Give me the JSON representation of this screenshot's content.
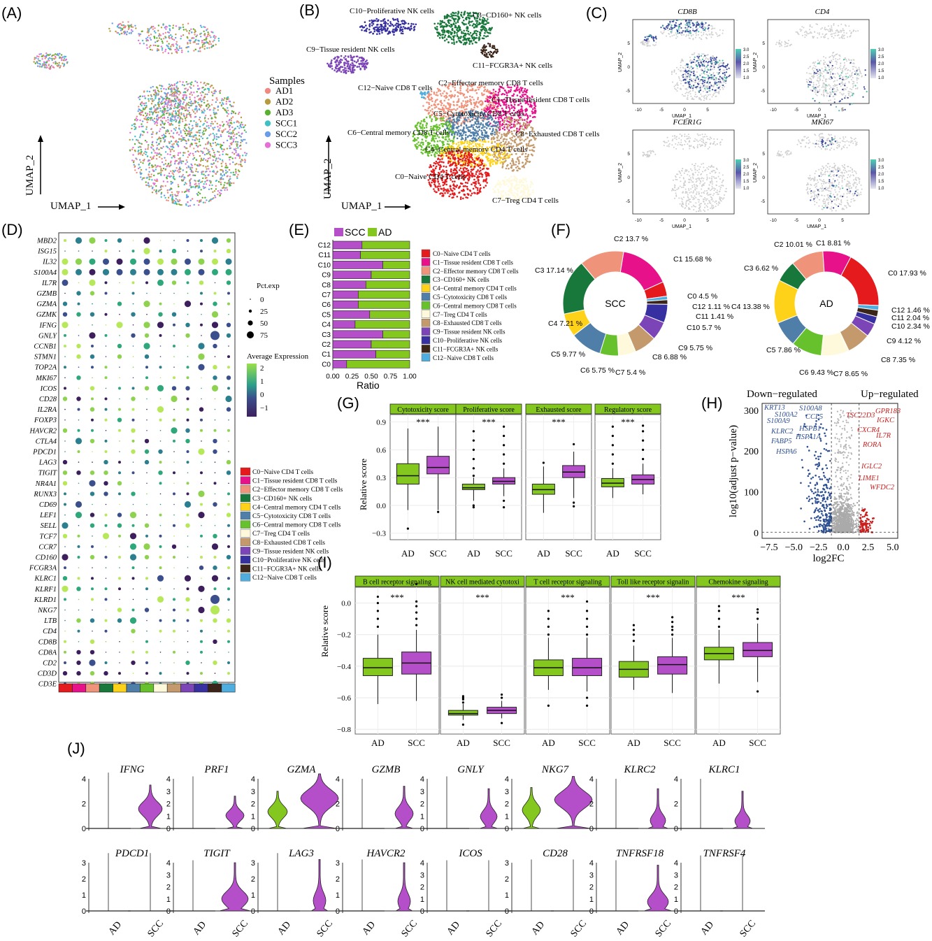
{
  "panels": {
    "A": {
      "label": "(A)",
      "legend_title": "Samples",
      "samples": [
        {
          "name": "AD1",
          "color": "#F08A80"
        },
        {
          "name": "AD2",
          "color": "#B79A3C"
        },
        {
          "name": "AD3",
          "color": "#58B12F"
        },
        {
          "name": "SCC1",
          "color": "#3FC0C5"
        },
        {
          "name": "SCC2",
          "color": "#6B9CEB"
        },
        {
          "name": "SCC3",
          "color": "#E56FD6"
        }
      ],
      "xlabel": "UMAP_1",
      "ylabel": "UMAP_2"
    },
    "B": {
      "label": "(B)",
      "xlabel": "UMAP_1",
      "ylabel": "UMAP_2",
      "cluster_labels": [
        "C10−Proliferative NK cells",
        "C3−CD160+ NK cells",
        "C9−Tissue resident NK cells",
        "C11−FCGR3A+ NK cells",
        "C12−Naive CD8 T cells",
        "C2−Effector memory CD8 T cells",
        "C1−Tissue resident CD8 T cells",
        "C5−Cytotoxicity CD8 T cells",
        "C6−Central memory CD8 T cells",
        "C8−Exhausted CD8 T cells",
        "C4−Central memory CD4 T cells",
        "C0−Naive CD4 T cells",
        "C7−Treg CD4 T cells"
      ]
    },
    "C": {
      "label": "(C)",
      "genes": [
        "CD8B",
        "CD4",
        "FCER1G",
        "MKI67"
      ],
      "xlabel": "UMAP_1",
      "ylabel": "UMAP_2",
      "x_ticks": [
        "-10",
        "-5",
        "0",
        "5"
      ],
      "y_ticks": [
        "5",
        "0",
        "-5"
      ],
      "scale_ticks": [
        "3.0",
        "2.5",
        "2.0",
        "1.5",
        "1.0"
      ]
    },
    "D": {
      "label": "(D)",
      "genes": [
        "MBD2",
        "ISG15",
        "IL32",
        "S100A4",
        "IL7R",
        "GZMB",
        "GZMA",
        "GZMK",
        "IFNG",
        "GNLY",
        "CCNB1",
        "STMN1",
        "TOP2A",
        "MKI67",
        "ICOS",
        "CD28",
        "IL2RA",
        "FOXP3",
        "HAVCR2",
        "CTLA4",
        "PDCD1",
        "LAG3",
        "TIGIT",
        "NR4A1",
        "RUNX3",
        "CD69",
        "LEF1",
        "SELL",
        "TCF7",
        "CCR7",
        "CD160",
        "FCGR3A",
        "KLRC1",
        "KLRF1",
        "KLRD1",
        "NKG7",
        "LTB",
        "CD4",
        "CD8B",
        "CD8A",
        "CD2",
        "CD3D",
        "CD3E"
      ],
      "pct_title": "Pct.exp",
      "pct_values": [
        "0",
        "25",
        "50",
        "75"
      ],
      "avg_title": "Average Expression",
      "avg_ticks": [
        "2",
        "1",
        "0",
        "−1"
      ]
    },
    "E": {
      "label": "(E)",
      "legend": [
        "SCC",
        "AD"
      ],
      "clusters": [
        "C12",
        "C11",
        "C10",
        "C9",
        "C8",
        "C7",
        "C6",
        "C5",
        "C4",
        "C3",
        "C2",
        "C1",
        "C0"
      ],
      "scc_ratio": [
        0.38,
        0.36,
        0.65,
        0.5,
        0.43,
        0.33,
        0.33,
        0.48,
        0.29,
        0.65,
        0.5,
        0.56,
        0.18
      ],
      "xlabel": "Ratio",
      "x_ticks": [
        "0.00",
        "0.25",
        "0.50",
        "0.75",
        "1.00"
      ]
    },
    "F": {
      "label": "(F)",
      "scc_center": "SCC",
      "ad_center": "AD",
      "scc_labels": [
        "C2 13.7 %",
        "C1 15.68 %",
        "C0 4.5 %",
        "C12 1.11 %",
        "C11 1.41 %",
        "C10 5.7 %",
        "C9 5.75 %",
        "C8 6.88 %",
        "C7 5.4 %",
        "C6 5.75 %",
        "C5 9.77 %",
        "C4 7.21 %",
        "C3 17.14 %"
      ],
      "ad_labels": [
        "C2 10.01 %",
        "C1 8.81 %",
        "C0 17.93 %",
        "C12 1.46 %",
        "C11 2.04 %",
        "C10 2.34 %",
        "C9 4.12 %",
        "C8 7.35 %",
        "C7 8.65 %",
        "C6 9.43 %",
        "C5 7.86 %",
        "C4 13.38 %",
        "C3 6.62 %"
      ]
    },
    "G": {
      "label": "(G)",
      "ylabel": "Relative score",
      "facets": [
        "Cytotoxicity score",
        "Proliferative score",
        "Exhausted score",
        "Regulatory score"
      ],
      "groups": [
        "AD",
        "SCC"
      ],
      "y_ticks": [
        "0.9",
        "0.6",
        "0.3",
        "0.0",
        "−0.3"
      ],
      "sig": "***"
    },
    "H": {
      "label": "(H)",
      "down": "Down−regulated",
      "up": "Up−regulated",
      "ylabel": "log10(adjust p−value)",
      "xlabel": "log2FC",
      "x_ticks": [
        "−7.5",
        "−5.0",
        "−2.5",
        "0.0",
        "2.5",
        "5.0"
      ],
      "y_ticks": [
        "300",
        "200",
        "100",
        "0"
      ],
      "down_genes": [
        "KRT13",
        "S100A2",
        "S100A9",
        "S100A8",
        "CCL5",
        "KLRC2",
        "HSPB1",
        "HSPA1A",
        "FABP5",
        "HSPA6"
      ],
      "up_genes": [
        "GPR183",
        "TSC22D3",
        "IGKC",
        "CXCR4",
        "IL7R",
        "RORA",
        "IGLC2",
        "LIME1",
        "WFDC2"
      ]
    },
    "I": {
      "label": "(I)",
      "ylabel": "Relative score",
      "facets": [
        "B cell receptor signaling",
        "NK cell mediated cytotoxi",
        "T cell receptor signaling",
        "Toll like receptor signalin",
        "Chemokine signaling"
      ],
      "groups": [
        "AD",
        "SCC"
      ],
      "y_ticks": [
        "0.0",
        "−0.2",
        "−0.4",
        "−0.6",
        "−0.8"
      ],
      "sig": "***"
    },
    "J": {
      "label": "(J)",
      "row1": [
        "IFNG",
        "PRF1",
        "GZMA",
        "GZMB",
        "GNLY",
        "NKG7",
        "KLRC2",
        "KLRC1"
      ],
      "row2": [
        "PDCD1",
        "TIGIT",
        "LAG3",
        "HAVCR2",
        "ICOS",
        "CD28",
        "TNFRSF18",
        "TNFRSF4"
      ],
      "groups": [
        "AD",
        "SCC"
      ]
    }
  },
  "cluster_legend": [
    {
      "name": "C0−Naive CD4 T cells",
      "color": "#E41A1C"
    },
    {
      "name": "C1−Tissue resident CD8 T cells",
      "color": "#E7128A"
    },
    {
      "name": "C2−Effector memory CD8 T cells",
      "color": "#F0937B"
    },
    {
      "name": "C3−CD160+ NK cells",
      "color": "#18773A"
    },
    {
      "name": "C4−Central memory CD4 T cells",
      "color": "#FFD21A"
    },
    {
      "name": "C5−Cytotoxicity CD8 T cells",
      "color": "#4F7FA8"
    },
    {
      "name": "C6−Central memory CD8 T cells",
      "color": "#66C12C"
    },
    {
      "name": "C7−Treg CD4 T cells",
      "color": "#FFF9DC"
    },
    {
      "name": "C8−Exhausted CD8 T cells",
      "color": "#C49A6C"
    },
    {
      "name": "C9−Tissue resident NK cells",
      "color": "#7B45B7"
    },
    {
      "name": "C10−Proliferative NK cells",
      "color": "#3730A0"
    },
    {
      "name": "C11−FCGR3A+ NK cells",
      "color": "#3B2418"
    },
    {
      "name": "C12−Naive CD8 T cells",
      "color": "#4FAEDF"
    }
  ]
}
